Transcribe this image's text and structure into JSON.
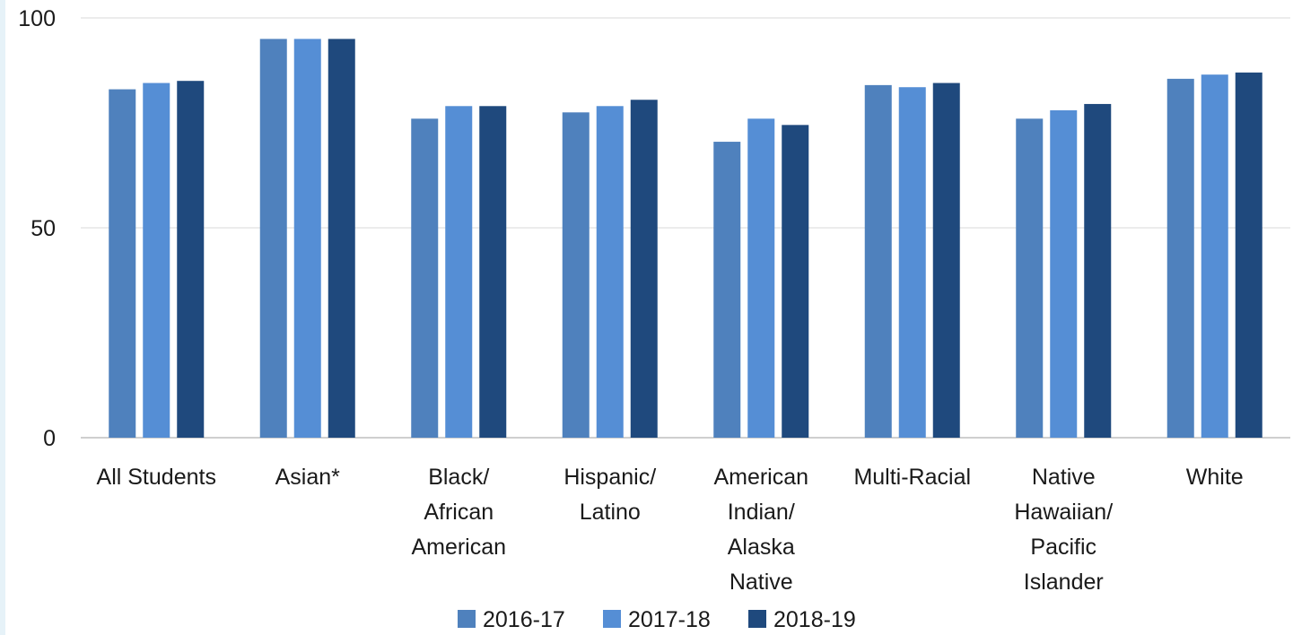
{
  "chart_data": {
    "type": "bar",
    "categories": [
      [
        "All Students"
      ],
      [
        "Asian*"
      ],
      [
        "Black/",
        "African",
        "American"
      ],
      [
        "Hispanic/",
        "Latino"
      ],
      [
        "American",
        "Indian/",
        "Alaska",
        "Native"
      ],
      [
        "Multi-Racial"
      ],
      [
        "Native",
        "Hawaiian/",
        "Pacific",
        "Islander"
      ],
      [
        "White"
      ]
    ],
    "series": [
      {
        "name": "2016-17",
        "color": "#4f81bd",
        "values": [
          83,
          95,
          76,
          77.5,
          70.5,
          84,
          76,
          85.5
        ]
      },
      {
        "name": "2017-18",
        "color": "#558ed5",
        "values": [
          84.5,
          95,
          79,
          79,
          76,
          83.5,
          78,
          86.5
        ]
      },
      {
        "name": "2018-19",
        "color": "#1f497d",
        "values": [
          85,
          95,
          79,
          80.5,
          74.5,
          84.5,
          79.5,
          87
        ]
      }
    ],
    "yticks": [
      0,
      50,
      100
    ],
    "ylim": [
      0,
      100
    ],
    "grid": true,
    "legend": "bottom",
    "title": "",
    "xlabel": "",
    "ylabel": ""
  }
}
